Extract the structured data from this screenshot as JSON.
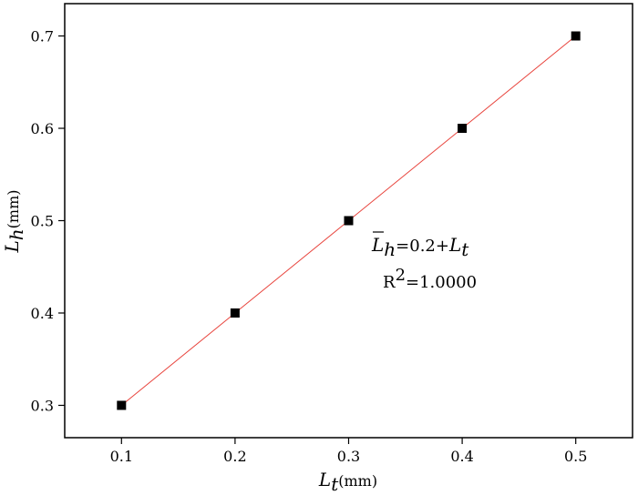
{
  "chart_data": {
    "type": "scatter",
    "title": "",
    "x": [
      0.1,
      0.2,
      0.3,
      0.4,
      0.5
    ],
    "series": [
      {
        "values": [
          0.3,
          0.4,
          0.5,
          0.6,
          0.7
        ],
        "marker": "square",
        "color": "#000000"
      }
    ],
    "fit_line": {
      "intercept": 0.2,
      "slope": 1.0,
      "color": "#e8433c"
    },
    "xlim": [
      0.05,
      0.55
    ],
    "ylim": [
      0.265,
      0.735
    ],
    "xticks": [
      "0.1",
      "0.2",
      "0.3",
      "0.4",
      "0.5"
    ],
    "yticks": [
      "0.3",
      "0.4",
      "0.5",
      "0.6",
      "0.7"
    ],
    "xlabel": {
      "symbol": "L",
      "subscript": "t",
      "unit": "(mm)"
    },
    "ylabel": {
      "symbol": "L",
      "subscript": "h",
      "overline": true,
      "unit": "(mm)"
    },
    "annotation": {
      "equation_lhs_symbol": "L",
      "equation_lhs_subscript": "h",
      "equation_middle": "=0.2+",
      "equation_rhs_symbol": "L",
      "equation_rhs_subscript": "t",
      "r2_prefix": "R",
      "r2_sup": "2",
      "r2_value": "=1.0000"
    },
    "grid": false,
    "legend": "none"
  }
}
